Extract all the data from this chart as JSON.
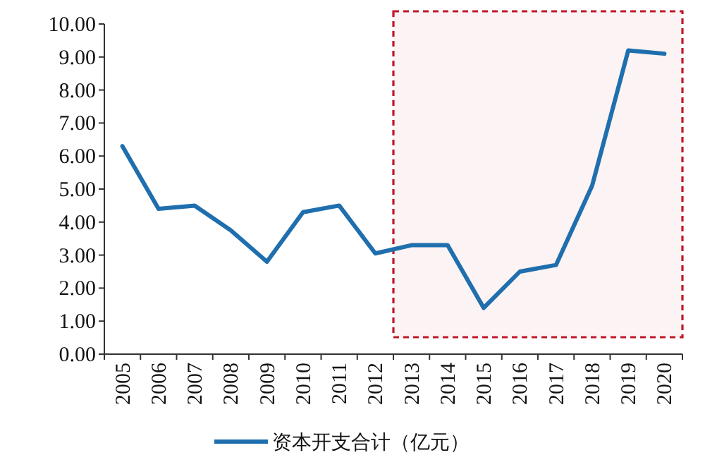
{
  "chart_data": {
    "type": "line",
    "categories": [
      "2005",
      "2006",
      "2007",
      "2008",
      "2009",
      "2010",
      "2011",
      "2012",
      "2013",
      "2014",
      "2015",
      "2016",
      "2017",
      "2018",
      "2019",
      "2020"
    ],
    "series": [
      {
        "name": "资本开支合计（亿元）",
        "color": "#1f6fae",
        "values": [
          6.3,
          4.4,
          4.5,
          3.75,
          2.8,
          4.3,
          4.5,
          3.05,
          3.3,
          3.3,
          1.4,
          2.5,
          2.7,
          5.1,
          9.2,
          9.1
        ]
      }
    ],
    "ylim": [
      0,
      10
    ],
    "yticks": [
      {
        "value": 0,
        "label": "0.00"
      },
      {
        "value": 1,
        "label": "1.00"
      },
      {
        "value": 2,
        "label": "2.00"
      },
      {
        "value": 3,
        "label": "3.00"
      },
      {
        "value": 4,
        "label": "4.00"
      },
      {
        "value": 5,
        "label": "5.00"
      },
      {
        "value": 6,
        "label": "6.00"
      },
      {
        "value": 7,
        "label": "7.00"
      },
      {
        "value": 8,
        "label": "8.00"
      },
      {
        "value": 9,
        "label": "9.00"
      },
      {
        "value": 10,
        "label": "10.00"
      }
    ],
    "bands": [
      {
        "axis": "x",
        "from": "2013",
        "to": "2020",
        "color": "#c0172a"
      }
    ],
    "legend": "bottom",
    "grid": false,
    "marker": "none",
    "line_style": "solid"
  }
}
